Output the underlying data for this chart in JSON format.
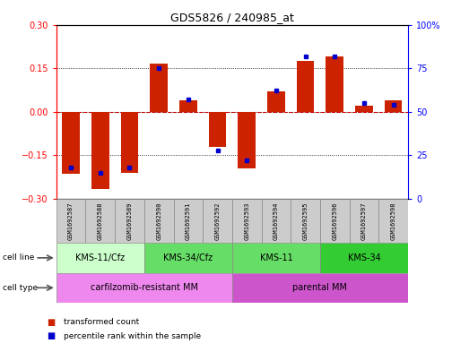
{
  "title": "GDS5826 / 240985_at",
  "samples": [
    "GSM1692587",
    "GSM1692588",
    "GSM1692589",
    "GSM1692590",
    "GSM1692591",
    "GSM1692592",
    "GSM1692593",
    "GSM1692594",
    "GSM1692595",
    "GSM1692596",
    "GSM1692597",
    "GSM1692598"
  ],
  "transformed_count": [
    -0.215,
    -0.265,
    -0.21,
    0.165,
    0.04,
    -0.12,
    -0.195,
    0.07,
    0.175,
    0.19,
    0.02,
    0.04
  ],
  "percentile_rank": [
    18,
    15,
    18,
    75,
    57,
    28,
    22,
    62,
    82,
    82,
    55,
    54
  ],
  "red_color": "#cc2200",
  "blue_color": "#0000cc",
  "bg_color": "#ffffff",
  "cell_line_groups": [
    {
      "label": "KMS-11/Cfz",
      "start": 0,
      "end": 3,
      "color": "#ccffcc"
    },
    {
      "label": "KMS-34/Cfz",
      "start": 3,
      "end": 6,
      "color": "#66dd66"
    },
    {
      "label": "KMS-11",
      "start": 6,
      "end": 9,
      "color": "#66dd66"
    },
    {
      "label": "KMS-34",
      "start": 9,
      "end": 12,
      "color": "#33cc33"
    }
  ],
  "cell_type_groups": [
    {
      "label": "carfilzomib-resistant MM",
      "start": 0,
      "end": 6,
      "color": "#ee88ee"
    },
    {
      "label": "parental MM",
      "start": 6,
      "end": 12,
      "color": "#cc55cc"
    }
  ],
  "ylim_left": [
    -0.3,
    0.3
  ],
  "ylim_right": [
    0,
    100
  ],
  "yticks_left": [
    -0.3,
    -0.15,
    0,
    0.15,
    0.3
  ],
  "yticks_right": [
    0,
    25,
    50,
    75,
    100
  ],
  "ytick_right_labels": [
    "0",
    "25",
    "50",
    "75",
    "100%"
  ],
  "legend_tc": "transformed count",
  "legend_pr": "percentile rank within the sample",
  "bar_width": 0.6,
  "sample_box_color": "#cccccc",
  "grid_color": "#000000",
  "zero_line_color": "#cc0000"
}
